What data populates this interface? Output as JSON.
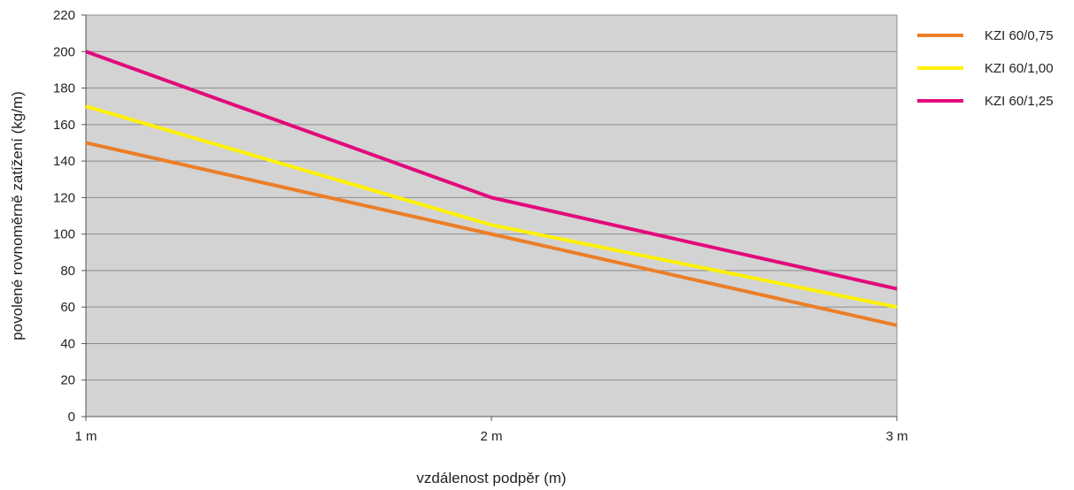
{
  "chart_data": {
    "type": "line",
    "title": "",
    "xlabel": "vzdálenost podpěr (m)",
    "ylabel": "povolené rovnoměrně zatížení (kg/m)",
    "categories": [
      "1 m",
      "2 m",
      "3 m"
    ],
    "ylim": [
      0,
      220
    ],
    "yticks": [
      0,
      20,
      40,
      60,
      80,
      100,
      120,
      140,
      160,
      180,
      200,
      220
    ],
    "grid": true,
    "legend_position": "right",
    "plot_background": "#d3d3d3",
    "series": [
      {
        "name": "KZI 60/0,75",
        "color": "#ec7e27",
        "values": [
          150,
          100,
          50
        ]
      },
      {
        "name": "KZI 60/1,00",
        "color": "#fff200",
        "values": [
          170,
          105,
          60
        ]
      },
      {
        "name": "KZI 60/1,25",
        "color": "#e2097c",
        "values": [
          200,
          120,
          70
        ]
      }
    ]
  }
}
